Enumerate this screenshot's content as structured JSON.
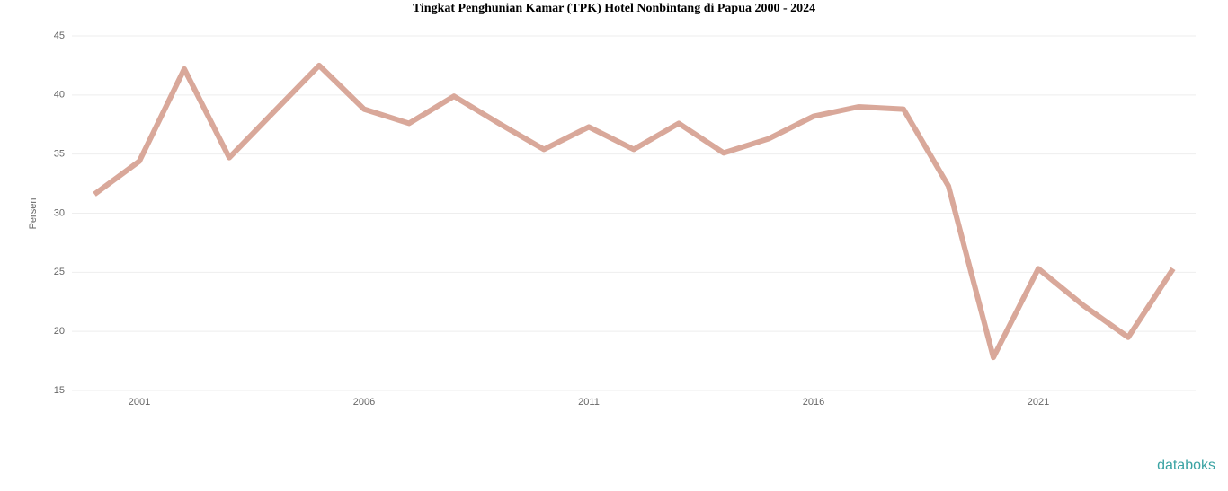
{
  "chart_data": {
    "type": "line",
    "title": "Tingkat Penghunian Kamar (TPK) Hotel Nonbintang di Papua 2000 - 2024",
    "y_label": "Persen",
    "x": [
      2000,
      2001,
      2002,
      2003,
      2004,
      2005,
      2006,
      2007,
      2008,
      2009,
      2010,
      2011,
      2012,
      2013,
      2014,
      2015,
      2016,
      2017,
      2018,
      2019,
      2020,
      2021,
      2022,
      2023,
      2024
    ],
    "series": [
      {
        "name": "TPK",
        "color": "#d9a89a",
        "values": [
          31.6,
          34.4,
          42.2,
          34.7,
          38.6,
          42.5,
          38.8,
          37.6,
          39.9,
          37.6,
          35.4,
          37.3,
          35.4,
          37.6,
          35.1,
          36.3,
          38.2,
          39.0,
          38.8,
          32.3,
          17.8,
          25.3,
          22.2,
          19.5,
          25.3
        ]
      }
    ],
    "xlim": [
      1999.5,
      2024.5
    ],
    "xticks": [
      2001,
      2006,
      2011,
      2016,
      2021
    ],
    "ylim": [
      15,
      45
    ],
    "yticks": [
      15,
      20,
      25,
      30,
      35,
      40,
      45
    ],
    "grid": true,
    "brand": "databoks"
  }
}
